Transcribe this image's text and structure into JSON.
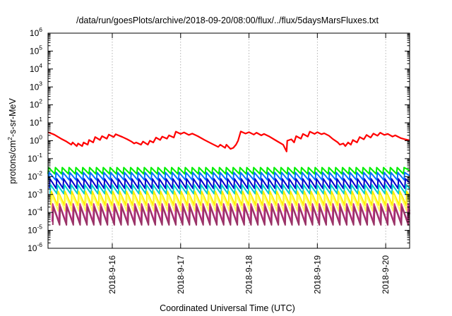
{
  "chart_data": {
    "type": "line",
    "title": "/data/run/goesPlots/archive/2018-09-20/08:00/flux/../flux/5daysMarsFluxes.txt",
    "xlabel": "Coordinated Universal Time (UTC)",
    "ylabel": "protons/cm2-s-sr-MeV",
    "ylabel_parts": {
      "pre": "protons/cm",
      "sup": "2",
      "post": "-s-sr-MeV"
    },
    "yscale": "log",
    "ylim_exp": [
      -6,
      6
    ],
    "y_tick_labels": [
      {
        "base": "10",
        "exp": "6"
      },
      {
        "base": "10",
        "exp": "5"
      },
      {
        "base": "10",
        "exp": "4"
      },
      {
        "base": "10",
        "exp": "3"
      },
      {
        "base": "10",
        "exp": "2"
      },
      {
        "base": "10",
        "exp": "1"
      },
      {
        "base": "10",
        "exp": "0"
      },
      {
        "base": "10",
        "exp": "-1"
      },
      {
        "base": "10",
        "exp": "-2"
      },
      {
        "base": "10",
        "exp": "-3"
      },
      {
        "base": "10",
        "exp": "-4"
      },
      {
        "base": "10",
        "exp": "-5"
      },
      {
        "base": "10",
        "exp": "-6"
      }
    ],
    "x_days_range": [
      15.06,
      20.35
    ],
    "x_ticks": [
      {
        "day": 16,
        "label": "2018-9-16"
      },
      {
        "day": 17,
        "label": "2018-9-17"
      },
      {
        "day": 18,
        "label": "2018-9-18"
      },
      {
        "day": 19,
        "label": "2018-9-19"
      },
      {
        "day": 20,
        "label": "2018-9-20"
      }
    ],
    "grid": true,
    "series": [
      {
        "color": "#ff0000",
        "points": [
          [
            15.06,
            3.0
          ],
          [
            15.15,
            2.2
          ],
          [
            15.25,
            1.3
          ],
          [
            15.33,
            0.9
          ],
          [
            15.4,
            0.6
          ],
          [
            15.42,
            0.8
          ],
          [
            15.48,
            0.5
          ],
          [
            15.5,
            0.7
          ],
          [
            15.56,
            0.5
          ],
          [
            15.58,
            0.8
          ],
          [
            15.64,
            0.6
          ],
          [
            15.66,
            1.1
          ],
          [
            15.72,
            0.8
          ],
          [
            15.75,
            1.6
          ],
          [
            15.82,
            1.1
          ],
          [
            15.85,
            1.8
          ],
          [
            15.92,
            1.3
          ],
          [
            15.95,
            2.2
          ],
          [
            16.02,
            1.6
          ],
          [
            16.05,
            2.3
          ],
          [
            16.15,
            1.6
          ],
          [
            16.22,
            1.2
          ],
          [
            16.28,
            0.9
          ],
          [
            16.32,
            0.7
          ],
          [
            16.35,
            0.8
          ],
          [
            16.42,
            0.6
          ],
          [
            16.45,
            0.9
          ],
          [
            16.52,
            0.6
          ],
          [
            16.55,
            1.0
          ],
          [
            16.6,
            0.8
          ],
          [
            16.64,
            1.5
          ],
          [
            16.7,
            1.1
          ],
          [
            16.73,
            1.7
          ],
          [
            16.8,
            1.3
          ],
          [
            16.83,
            2.0
          ],
          [
            16.9,
            1.5
          ],
          [
            16.93,
            3.2
          ],
          [
            17.0,
            2.4
          ],
          [
            17.05,
            2.9
          ],
          [
            17.12,
            2.1
          ],
          [
            17.17,
            2.5
          ],
          [
            17.25,
            1.8
          ],
          [
            17.35,
            1.1
          ],
          [
            17.45,
            0.7
          ],
          [
            17.55,
            0.45
          ],
          [
            17.58,
            0.6
          ],
          [
            17.65,
            0.4
          ],
          [
            17.67,
            0.6
          ],
          [
            17.73,
            0.35
          ],
          [
            17.77,
            0.4
          ],
          [
            17.81,
            0.6
          ],
          [
            17.84,
            1.0
          ],
          [
            17.88,
            3.3
          ],
          [
            17.95,
            2.5
          ],
          [
            18.0,
            3.0
          ],
          [
            18.07,
            2.2
          ],
          [
            18.11,
            2.8
          ],
          [
            18.18,
            2.0
          ],
          [
            18.22,
            2.4
          ],
          [
            18.3,
            1.7
          ],
          [
            18.4,
            1.0
          ],
          [
            18.5,
            0.6
          ],
          [
            18.55,
            0.25
          ],
          [
            18.56,
            1.0
          ],
          [
            18.62,
            1.2
          ],
          [
            18.66,
            0.8
          ],
          [
            18.69,
            1.8
          ],
          [
            18.76,
            1.3
          ],
          [
            18.79,
            2.4
          ],
          [
            18.86,
            1.7
          ],
          [
            18.89,
            3.2
          ],
          [
            18.96,
            2.4
          ],
          [
            19.0,
            3.0
          ],
          [
            19.06,
            2.3
          ],
          [
            19.1,
            2.6
          ],
          [
            19.17,
            1.9
          ],
          [
            19.22,
            1.3
          ],
          [
            19.3,
            0.8
          ],
          [
            19.33,
            0.6
          ],
          [
            19.38,
            0.7
          ],
          [
            19.41,
            0.5
          ],
          [
            19.45,
            0.8
          ],
          [
            19.49,
            0.6
          ],
          [
            19.52,
            1.1
          ],
          [
            19.58,
            0.8
          ],
          [
            19.62,
            1.6
          ],
          [
            19.68,
            1.2
          ],
          [
            19.72,
            2.1
          ],
          [
            19.78,
            1.5
          ],
          [
            19.82,
            2.5
          ],
          [
            19.88,
            1.9
          ],
          [
            19.92,
            2.8
          ],
          [
            19.98,
            2.1
          ],
          [
            20.03,
            2.4
          ],
          [
            20.1,
            1.7
          ],
          [
            20.14,
            2.0
          ],
          [
            20.22,
            1.4
          ],
          [
            20.28,
            1.2
          ],
          [
            20.35,
            1.05
          ]
        ]
      },
      {
        "color": "#00ee00",
        "baseline": 0.022,
        "peak": 0.032,
        "trough": 0.014,
        "period": 0.1,
        "phase": 0.0
      },
      {
        "color": "#0072ff",
        "baseline": 0.011,
        "peak": 0.017,
        "trough": 0.0065,
        "period": 0.1,
        "phase": 0.01
      },
      {
        "color": "#0000cc",
        "baseline": 0.0045,
        "peak": 0.0075,
        "trough": 0.0022,
        "period": 0.1,
        "phase": 0.02
      },
      {
        "color": "#00cccc",
        "baseline": 0.0022,
        "peak": 0.0035,
        "trough": 0.0011,
        "period": 0.1,
        "phase": 0.03
      },
      {
        "color": "#ffee00",
        "baseline": 0.0008,
        "peak": 0.0015,
        "trough": 0.00025,
        "period": 0.1,
        "phase": 0.04
      },
      {
        "color": "#ffff66",
        "baseline": 0.0004,
        "peak": 0.0009,
        "trough": 0.00012,
        "period": 0.1,
        "phase": 0.05
      },
      {
        "color": "#cc3399",
        "baseline": 0.00012,
        "peak": 0.0003,
        "trough": 3e-05,
        "period": 0.1,
        "phase": 0.06
      },
      {
        "color": "#993366",
        "baseline": 8e-05,
        "peak": 0.0002,
        "trough": 2e-05,
        "period": 0.1,
        "phase": 0.07
      }
    ]
  }
}
